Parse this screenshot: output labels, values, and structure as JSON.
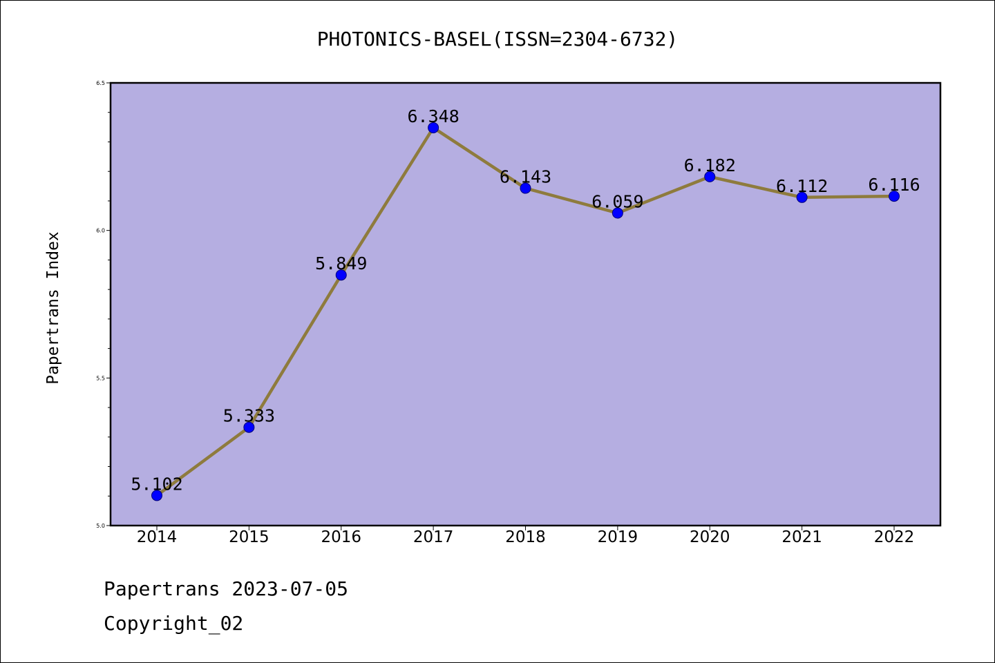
{
  "chart_data": {
    "type": "line",
    "title": "PHOTONICS-BASEL(ISSN=2304-6732)",
    "xlabel": "",
    "ylabel": "Papertrans Index",
    "x": [
      "2014",
      "2015",
      "2016",
      "2017",
      "2018",
      "2019",
      "2020",
      "2021",
      "2022"
    ],
    "series": [
      {
        "values": [
          5.102,
          5.333,
          5.849,
          6.348,
          6.143,
          6.059,
          6.182,
          6.112,
          6.116
        ],
        "labels": [
          "5.102",
          "5.333",
          "5.849",
          "6.348",
          "6.143",
          "6.059",
          "6.182",
          "6.112",
          "6.116"
        ]
      }
    ],
    "ylim": [
      5.0,
      6.5
    ],
    "yticks": [
      "5.0",
      "5.5",
      "6.0",
      "6.5"
    ],
    "grid": false,
    "plot_background": "#b5aee1",
    "line_color": "#8e7b3d",
    "marker_color": "#0000ff"
  },
  "footer": {
    "line1": "Papertrans 2023-07-05",
    "line2": "Copyright_02"
  }
}
